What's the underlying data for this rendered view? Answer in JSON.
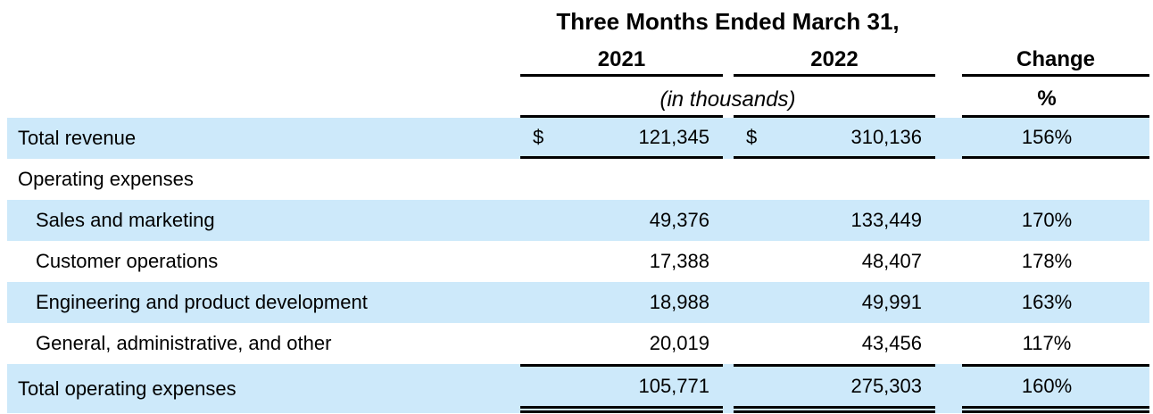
{
  "accent_color": "#cde9fa",
  "line_color": "#000000",
  "header": {
    "title": "Three Months Ended March 31,",
    "col_2021": "2021",
    "col_2022": "2022",
    "col_change": "Change",
    "unit_note": "(in thousands)",
    "change_unit": "%"
  },
  "rows": [
    {
      "label": "Total revenue",
      "currency_2021": "$",
      "v2021": "121,345",
      "currency_2022": "$",
      "v2022": "310,136",
      "change": "156%"
    },
    {
      "label": "Operating expenses"
    },
    {
      "label": "Sales and marketing",
      "v2021": "49,376",
      "v2022": "133,449",
      "change": "170%"
    },
    {
      "label": "Customer operations",
      "v2021": "17,388",
      "v2022": "48,407",
      "change": "178%"
    },
    {
      "label": "Engineering and product development",
      "v2021": "18,988",
      "v2022": "49,991",
      "change": "163%"
    },
    {
      "label": "General, administrative, and other",
      "v2021": "20,019",
      "v2022": "43,456",
      "change": "117%"
    },
    {
      "label": "Total operating expenses",
      "v2021": "105,771",
      "v2022": "275,303",
      "change": "160%"
    }
  ]
}
